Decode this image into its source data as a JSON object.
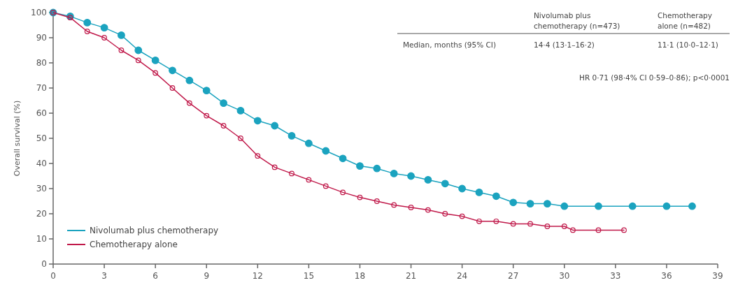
{
  "chart_data": {
    "type": "line",
    "ylabel": "Overall survival (%)",
    "xlim": [
      0,
      39
    ],
    "ylim": [
      0,
      100
    ],
    "xticks": [
      0,
      3,
      6,
      9,
      12,
      15,
      18,
      21,
      24,
      27,
      30,
      33,
      36,
      39
    ],
    "yticks": [
      0,
      10,
      20,
      30,
      40,
      50,
      60,
      70,
      80,
      90,
      100
    ],
    "grid": false,
    "legend": "bottom left",
    "marker": "circle",
    "line_style": "solid",
    "annotations": [
      "Nivolumab plus chemotherapy (n=473)",
      "Chemotherapy alone (n=482)",
      "Median, months (95% CI)",
      "14·4 (13·1–16·2)",
      "11·1 (10·0–12·1)",
      "HR 0·71 (98·4% CI 0·59–0·86); p<0·0001"
    ],
    "series": [
      {
        "name": "Nivolumab plus chemotherapy",
        "color": "#1ba3bf",
        "x": [
          0,
          1,
          2,
          3,
          4,
          5,
          6,
          7,
          8,
          9,
          10,
          11,
          12,
          13,
          14,
          15,
          16,
          17,
          18,
          19,
          20,
          21,
          22,
          23,
          24,
          25,
          26,
          27,
          28,
          29,
          30,
          32,
          34,
          36,
          37.5
        ],
        "values": [
          100,
          98.5,
          96,
          94,
          91,
          85,
          81,
          77,
          73,
          69,
          64,
          61,
          57,
          55,
          51,
          48,
          45,
          42,
          39,
          38,
          36,
          35,
          33.5,
          32,
          30,
          28.5,
          27,
          24.5,
          24,
          24,
          23,
          23,
          23,
          23,
          23
        ]
      },
      {
        "name": "Chemotherapy alone",
        "color": "#c0194a",
        "x": [
          0,
          1,
          2,
          3,
          4,
          5,
          6,
          7,
          8,
          9,
          10,
          11,
          12,
          13,
          14,
          15,
          16,
          17,
          18,
          19,
          20,
          21,
          22,
          23,
          24,
          25,
          26,
          27,
          28,
          29,
          30,
          30.5,
          32,
          33.5
        ],
        "values": [
          100,
          98,
          92.5,
          90,
          85,
          81,
          76,
          70,
          64,
          59,
          55,
          50,
          43,
          38.5,
          36,
          33.5,
          31,
          28.5,
          26.5,
          25,
          23.5,
          22.5,
          21.5,
          20,
          19,
          17,
          17,
          16,
          16,
          15,
          15,
          13.5,
          13.5,
          13.5
        ]
      }
    ]
  }
}
